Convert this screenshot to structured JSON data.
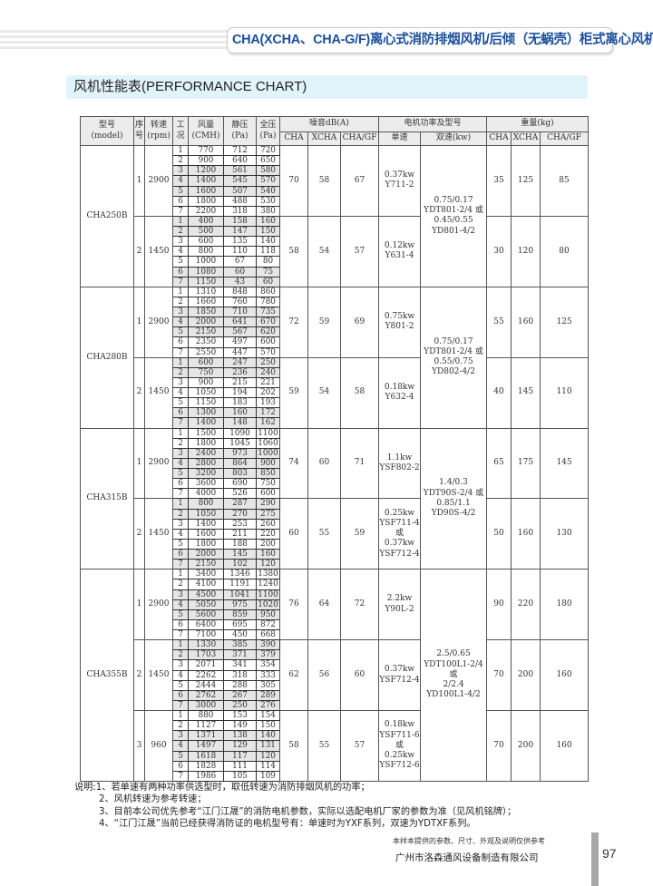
{
  "header": {
    "title": "CHA(XCHA、CHA-G/F)离心式消防排烟风机/后倾（无蜗壳）柜式离心风机",
    "section": "风机性能表(PERFORMANCE CHART)"
  },
  "table": {
    "headers": {
      "model": "型号",
      "model_en": "(model)",
      "seq": "序号",
      "rpm": "转速",
      "rpm_unit": "(rpm)",
      "cond": "工况",
      "flow": "风量",
      "flow_unit": "(CMH)",
      "static": "静压",
      "static_unit": "(Pa)",
      "total": "全压",
      "total_unit": "(Pa)",
      "noise": "噪音dB(A)",
      "motor": "电机功率及型号",
      "weight": "重量(kg)",
      "cha": "CHA",
      "xcha": "XCHA",
      "chagf": "CHA/GF",
      "single": "单速",
      "dual": "双速(kw)"
    },
    "models": [
      {
        "name": "CHA250B",
        "dual": [
          "0.75/0.17",
          "YDT801-2/4 或",
          "0.45/0.55",
          "YD801-4/2"
        ],
        "speeds": [
          {
            "seq": "1",
            "rpm": "2900",
            "noise": [
              "70",
              "58",
              "67"
            ],
            "single": [
              "0.37kw",
              "Y711-2"
            ],
            "weight": [
              "35",
              "125",
              "85"
            ],
            "points": [
              [
                "1",
                "770",
                "712",
                "720"
              ],
              [
                "2",
                "900",
                "640",
                "650"
              ],
              [
                "3",
                "1200",
                "561",
                "580"
              ],
              [
                "4",
                "1400",
                "545",
                "570"
              ],
              [
                "5",
                "1600",
                "507",
                "540"
              ],
              [
                "6",
                "1800",
                "488",
                "530"
              ],
              [
                "7",
                "2200",
                "318",
                "380"
              ]
            ]
          },
          {
            "seq": "2",
            "rpm": "1450",
            "noise": [
              "58",
              "54",
              "57"
            ],
            "single": [
              "0.12kw",
              "Y631-4"
            ],
            "weight": [
              "30",
              "120",
              "80"
            ],
            "points": [
              [
                "1",
                "400",
                "158",
                "160"
              ],
              [
                "2",
                "500",
                "147",
                "150"
              ],
              [
                "3",
                "600",
                "135",
                "140"
              ],
              [
                "4",
                "800",
                "110",
                "118"
              ],
              [
                "5",
                "1000",
                "67",
                "80"
              ],
              [
                "6",
                "1080",
                "60",
                "75"
              ],
              [
                "7",
                "1150",
                "43",
                "60"
              ]
            ]
          }
        ]
      },
      {
        "name": "CHA280B",
        "dual": [
          "0.75/0.17",
          "YDT801-2/4 或",
          "0.55/0.75",
          "YD802-4/2"
        ],
        "speeds": [
          {
            "seq": "1",
            "rpm": "2900",
            "noise": [
              "72",
              "59",
              "69"
            ],
            "single": [
              "0.75kw",
              "Y801-2"
            ],
            "weight": [
              "55",
              "160",
              "125"
            ],
            "points": [
              [
                "1",
                "1310",
                "848",
                "860"
              ],
              [
                "2",
                "1660",
                "760",
                "780"
              ],
              [
                "3",
                "1850",
                "710",
                "735"
              ],
              [
                "4",
                "2000",
                "641",
                "670"
              ],
              [
                "5",
                "2150",
                "567",
                "620"
              ],
              [
                "6",
                "2350",
                "497",
                "600"
              ],
              [
                "7",
                "2550",
                "447",
                "570"
              ]
            ]
          },
          {
            "seq": "2",
            "rpm": "1450",
            "noise": [
              "59",
              "54",
              "58"
            ],
            "single": [
              "0.18kw",
              "Y632-4"
            ],
            "weight": [
              "40",
              "145",
              "110"
            ],
            "points": [
              [
                "1",
                "600",
                "247",
                "250"
              ],
              [
                "2",
                "750",
                "236",
                "240"
              ],
              [
                "3",
                "900",
                "215",
                "221"
              ],
              [
                "4",
                "1050",
                "194",
                "202"
              ],
              [
                "5",
                "1150",
                "183",
                "193"
              ],
              [
                "6",
                "1300",
                "160",
                "172"
              ],
              [
                "7",
                "1400",
                "148",
                "162"
              ]
            ]
          }
        ]
      },
      {
        "name": "CHA315B",
        "dual": [
          "1.4/0.3",
          "YDT90S-2/4 或",
          "0.85/1.1",
          "YD90S-4/2"
        ],
        "speeds": [
          {
            "seq": "1",
            "rpm": "2900",
            "noise": [
              "74",
              "60",
              "71"
            ],
            "single": [
              "1.1kw",
              "YSF802-2"
            ],
            "weight": [
              "65",
              "175",
              "145"
            ],
            "points": [
              [
                "1",
                "1500",
                "1090",
                "1100"
              ],
              [
                "2",
                "1800",
                "1045",
                "1060"
              ],
              [
                "3",
                "2400",
                "973",
                "1000"
              ],
              [
                "4",
                "2800",
                "864",
                "900"
              ],
              [
                "5",
                "3200",
                "803",
                "850"
              ],
              [
                "6",
                "3600",
                "690",
                "750"
              ],
              [
                "7",
                "4000",
                "526",
                "600"
              ]
            ]
          },
          {
            "seq": "2",
            "rpm": "1450",
            "noise": [
              "60",
              "55",
              "59"
            ],
            "single": [
              "0.25kw",
              "YSF711-4",
              "或",
              "0.37kw",
              "YSF712-4"
            ],
            "weight": [
              "50",
              "160",
              "130"
            ],
            "points": [
              [
                "1",
                "800",
                "287",
                "290"
              ],
              [
                "2",
                "1050",
                "270",
                "275"
              ],
              [
                "3",
                "1400",
                "253",
                "260"
              ],
              [
                "4",
                "1600",
                "211",
                "220"
              ],
              [
                "5",
                "1800",
                "188",
                "200"
              ],
              [
                "6",
                "2000",
                "145",
                "160"
              ],
              [
                "7",
                "2150",
                "102",
                "120"
              ]
            ]
          }
        ]
      },
      {
        "name": "CHA355B",
        "dual": [
          "2.5/0.65",
          "YDT100L1-2/4",
          "或",
          "2/2.4",
          "YD100L1-4/2"
        ],
        "speeds": [
          {
            "seq": "1",
            "rpm": "2900",
            "noise": [
              "76",
              "64",
              "72"
            ],
            "single": [
              "2.2kw",
              "Y90L-2"
            ],
            "weight": [
              "90",
              "220",
              "180"
            ],
            "points": [
              [
                "1",
                "3400",
                "1346",
                "1380"
              ],
              [
                "2",
                "4100",
                "1191",
                "1240"
              ],
              [
                "3",
                "4500",
                "1041",
                "1100"
              ],
              [
                "4",
                "5050",
                "975",
                "1020"
              ],
              [
                "5",
                "5600",
                "859",
                "950"
              ],
              [
                "6",
                "6400",
                "695",
                "872"
              ],
              [
                "7",
                "7100",
                "450",
                "668"
              ]
            ]
          },
          {
            "seq": "2",
            "rpm": "1450",
            "noise": [
              "62",
              "56",
              "60"
            ],
            "single": [
              "0.37kw",
              "YSF712-4"
            ],
            "weight": [
              "70",
              "200",
              "160"
            ],
            "points": [
              [
                "1",
                "1330",
                "385",
                "390"
              ],
              [
                "2",
                "1703",
                "371",
                "379"
              ],
              [
                "3",
                "2071",
                "341",
                "354"
              ],
              [
                "4",
                "2262",
                "318",
                "333"
              ],
              [
                "5",
                "2444",
                "288",
                "305"
              ],
              [
                "6",
                "2762",
                "267",
                "289"
              ],
              [
                "7",
                "3000",
                "250",
                "276"
              ]
            ]
          },
          {
            "seq": "3",
            "rpm": "960",
            "noise": [
              "58",
              "55",
              "57"
            ],
            "single": [
              "0.18kw",
              "YSF711-6",
              "或",
              "0.25kw",
              "YSF712-6"
            ],
            "weight": [
              "70",
              "200",
              "160"
            ],
            "points": [
              [
                "1",
                "880",
                "153",
                "154"
              ],
              [
                "2",
                "1127",
                "149",
                "150"
              ],
              [
                "3",
                "1371",
                "138",
                "140"
              ],
              [
                "4",
                "1497",
                "129",
                "131"
              ],
              [
                "5",
                "1618",
                "117",
                "120"
              ],
              [
                "6",
                "1828",
                "111",
                "114"
              ],
              [
                "7",
                "1986",
                "105",
                "109"
              ]
            ]
          }
        ]
      }
    ]
  },
  "notes": [
    "说明:1、若单速有两种功率供选型时，取低转速为消防排烟风机的功率；",
    "2、风机转速为参考转速；",
    "3、目前本公司优先参考“江门江晟”的消防电机参数，实际以选配电机厂家的参数为准（见风机铭牌）；",
    "4、“江门江晟”当前已经获得消防证的电机型号有：单速时为YXF系列，双速为YDTXF系列。"
  ],
  "footer": {
    "disclaimer": "本样本提供的参数、尺寸、外观及说明仅供参考",
    "company": "广州市洛森通风设备制造有限公司",
    "page": "97"
  }
}
